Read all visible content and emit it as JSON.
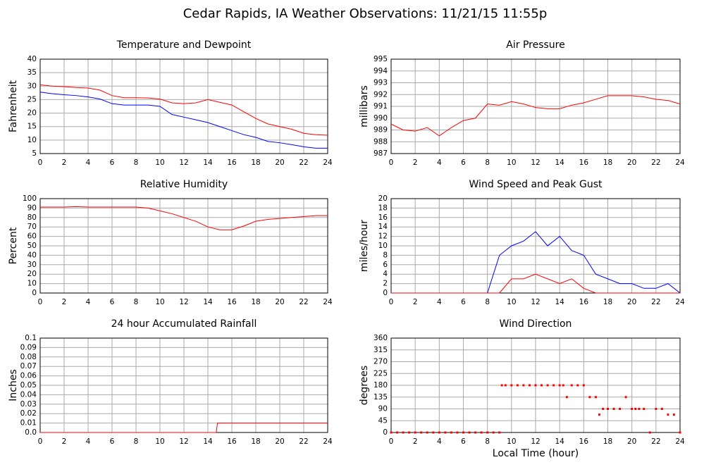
{
  "title": "Cedar Rapids, IA Weather Observations: 11/21/15 11:55p",
  "chart_data": [
    {
      "type": "line",
      "title": "Temperature and Dewpoint",
      "ylabel": "Fahrenheit",
      "grid": true,
      "x": [
        0,
        1,
        2,
        3,
        4,
        5,
        6,
        7,
        8,
        9,
        10,
        11,
        12,
        13,
        14,
        15,
        16,
        17,
        18,
        19,
        20,
        21,
        22,
        23,
        24
      ],
      "series": [
        {
          "color": "#ff0000",
          "values": [
            30.5,
            30,
            29.8,
            29.5,
            29.3,
            28.5,
            26.5,
            25.7,
            25.7,
            25.6,
            25.2,
            23.8,
            23.5,
            23.8,
            25,
            24,
            23,
            20.5,
            18,
            16,
            15,
            14,
            12.5,
            12,
            11.8
          ]
        },
        {
          "color": "#0000ff",
          "values": [
            27.8,
            27.2,
            26.8,
            26.5,
            26,
            25.2,
            23.5,
            23,
            23,
            23,
            22.5,
            19.5,
            18.5,
            17.5,
            16.5,
            15,
            13.5,
            12,
            11,
            9.5,
            9,
            8.3,
            7.5,
            7,
            7
          ]
        }
      ],
      "xlim": [
        0,
        24
      ],
      "xticks": [
        0,
        2,
        4,
        6,
        8,
        10,
        12,
        14,
        16,
        18,
        20,
        22,
        24
      ],
      "ylim": [
        5,
        40
      ],
      "yticks": [
        5,
        10,
        15,
        20,
        25,
        30,
        35,
        40
      ]
    },
    {
      "type": "line",
      "title": "Air Pressure",
      "ylabel": "millibars",
      "grid": true,
      "x": [
        0,
        1,
        2,
        3,
        4,
        5,
        6,
        7,
        8,
        9,
        10,
        11,
        12,
        13,
        14,
        15,
        16,
        17,
        18,
        19,
        20,
        21,
        22,
        23,
        24
      ],
      "series": [
        {
          "color": "#ff0000",
          "values": [
            989.5,
            989,
            988.9,
            989.2,
            988.5,
            989.2,
            989.8,
            990,
            991.2,
            991.1,
            991.4,
            991.2,
            990.9,
            990.8,
            990.8,
            991.1,
            991.3,
            991.6,
            991.9,
            991.9,
            991.9,
            991.8,
            991.6,
            991.5,
            991.2
          ]
        }
      ],
      "xlim": [
        0,
        24
      ],
      "xticks": [
        0,
        2,
        4,
        6,
        8,
        10,
        12,
        14,
        16,
        18,
        20,
        22,
        24
      ],
      "ylim": [
        987,
        995
      ],
      "yticks": [
        987,
        988,
        989,
        990,
        991,
        992,
        993,
        994,
        995
      ]
    },
    {
      "type": "line",
      "title": "Relative Humidity",
      "ylabel": "Percent",
      "grid": true,
      "x": [
        0,
        1,
        2,
        3,
        4,
        5,
        6,
        7,
        8,
        9,
        10,
        11,
        12,
        13,
        14,
        15,
        16,
        17,
        18,
        19,
        20,
        21,
        22,
        23,
        24
      ],
      "series": [
        {
          "color": "#ff0000",
          "values": [
            91,
            91,
            91,
            91.5,
            91,
            91,
            91,
            91,
            91,
            90,
            87,
            84,
            80,
            76,
            70,
            67,
            67,
            71,
            76,
            78,
            79,
            80,
            81,
            82,
            82
          ]
        }
      ],
      "xlim": [
        0,
        24
      ],
      "xticks": [
        0,
        2,
        4,
        6,
        8,
        10,
        12,
        14,
        16,
        18,
        20,
        22,
        24
      ],
      "ylim": [
        0,
        100
      ],
      "yticks": [
        0,
        10,
        20,
        30,
        40,
        50,
        60,
        70,
        80,
        90,
        100
      ]
    },
    {
      "type": "line",
      "title": "Wind Speed and Peak Gust",
      "ylabel": "miles/hour",
      "grid": true,
      "x": [
        0,
        1,
        2,
        3,
        4,
        5,
        6,
        7,
        8,
        9,
        10,
        11,
        12,
        13,
        14,
        15,
        16,
        17,
        18,
        19,
        20,
        21,
        22,
        23,
        24
      ],
      "series": [
        {
          "color": "#0000ff",
          "values": [
            0,
            0,
            0,
            0,
            0,
            0,
            0,
            0,
            0,
            8,
            10,
            11,
            13,
            10,
            12,
            9,
            8,
            4,
            3,
            2,
            2,
            1,
            1,
            2,
            0
          ]
        },
        {
          "color": "#ff0000",
          "values": [
            0,
            0,
            0,
            0,
            0,
            0,
            0,
            0,
            0,
            0,
            3,
            3,
            4,
            3,
            2,
            3,
            1,
            0,
            0,
            0,
            0,
            0,
            0,
            0,
            0
          ]
        }
      ],
      "xlim": [
        0,
        24
      ],
      "xticks": [
        0,
        2,
        4,
        6,
        8,
        10,
        12,
        14,
        16,
        18,
        20,
        22,
        24
      ],
      "ylim": [
        0,
        20
      ],
      "yticks": [
        0,
        2,
        4,
        6,
        8,
        10,
        12,
        14,
        16,
        18,
        20
      ]
    },
    {
      "type": "line",
      "title": "24 hour Accumulated Rainfall",
      "ylabel": "Inches",
      "grid": true,
      "x": [
        0,
        14.7,
        14.8,
        24
      ],
      "series": [
        {
          "color": "#ff0000",
          "values": [
            0,
            0,
            0.01,
            0.01
          ]
        }
      ],
      "xlim": [
        0,
        24
      ],
      "xticks": [
        0,
        2,
        4,
        6,
        8,
        10,
        12,
        14,
        16,
        18,
        20,
        22,
        24
      ],
      "ylim": [
        0,
        0.1
      ],
      "yticks": [
        {
          "value": 0,
          "label": "0.0"
        },
        0.01,
        0.02,
        0.03,
        0.04,
        0.05,
        0.06,
        0.07,
        0.08,
        0.09,
        0.1
      ]
    },
    {
      "type": "scatter",
      "title": "Wind Direction",
      "ylabel": "degrees",
      "xlabel": "Local Time (hour)",
      "grid": true,
      "x": [
        0,
        0.5,
        1,
        1.5,
        2,
        2.5,
        3,
        3.5,
        4,
        4.5,
        5,
        5.5,
        6,
        6.5,
        7,
        7.5,
        8,
        8.5,
        9,
        9.2,
        9.5,
        10,
        10.5,
        11,
        11.5,
        12,
        12.5,
        13,
        13.5,
        14,
        14.3,
        14.6,
        15,
        15.5,
        16,
        16.5,
        17,
        17.3,
        17.6,
        18,
        18.5,
        19,
        19.5,
        20,
        20.3,
        20.6,
        21,
        21.5,
        22,
        22.5,
        23,
        23.5,
        24
      ],
      "values": [
        0,
        0,
        0,
        0,
        0,
        0,
        0,
        0,
        0,
        0,
        0,
        0,
        0,
        0,
        0,
        0,
        0,
        0,
        0,
        180,
        180,
        180,
        180,
        180,
        180,
        180,
        180,
        180,
        180,
        180,
        180,
        135,
        180,
        180,
        180,
        135,
        135,
        68,
        90,
        90,
        90,
        90,
        135,
        90,
        90,
        90,
        90,
        0,
        90,
        90,
        68,
        68,
        0
      ],
      "color": "#ff0000",
      "xlim": [
        0,
        24
      ],
      "xticks": [
        0,
        2,
        4,
        6,
        8,
        10,
        12,
        14,
        16,
        18,
        20,
        22,
        24
      ],
      "ylim": [
        0,
        360
      ],
      "yticks": [
        0,
        45,
        90,
        135,
        180,
        225,
        270,
        315,
        360
      ]
    }
  ]
}
